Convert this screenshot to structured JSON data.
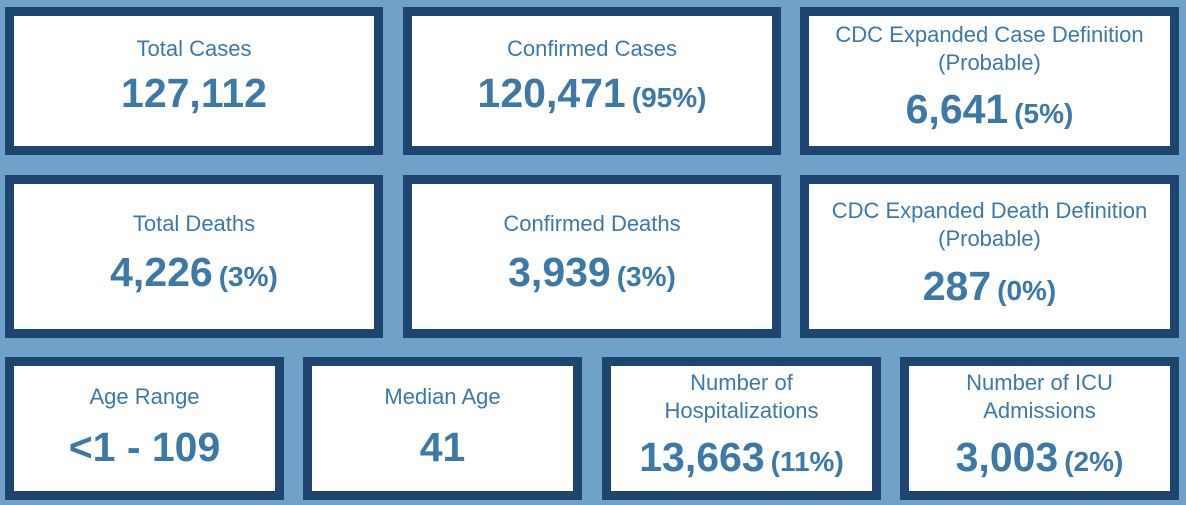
{
  "colors": {
    "background": "#6fa1c9",
    "card_border": "#1e4470",
    "card_fill": "#ffffff",
    "text": "#3d78a9"
  },
  "cards": [
    {
      "label_lines": [
        "Total Cases"
      ],
      "value": "127,112",
      "percent": ""
    },
    {
      "label_lines": [
        "Confirmed Cases"
      ],
      "value": "120,471",
      "percent": "(95%)"
    },
    {
      "label_lines": [
        "CDC Expanded Case Definition",
        "(Probable)"
      ],
      "value": "6,641",
      "percent": "(5%)"
    },
    {
      "label_lines": [
        "Total Deaths"
      ],
      "value": "4,226",
      "percent": "(3%)"
    },
    {
      "label_lines": [
        "Confirmed Deaths"
      ],
      "value": "3,939",
      "percent": "(3%)"
    },
    {
      "label_lines": [
        "CDC Expanded Death Definition",
        "(Probable)"
      ],
      "value": "287",
      "percent": "(0%)"
    },
    {
      "label_lines": [
        "Age Range"
      ],
      "value": "<1 - 109",
      "percent": ""
    },
    {
      "label_lines": [
        "Median Age"
      ],
      "value": "41",
      "percent": ""
    },
    {
      "label_lines": [
        "Number of",
        "Hospitalizations"
      ],
      "value": "13,663",
      "percent": "(11%)"
    },
    {
      "label_lines": [
        "Number of ICU",
        "Admissions"
      ],
      "value": "3,003",
      "percent": "(2%)"
    }
  ]
}
